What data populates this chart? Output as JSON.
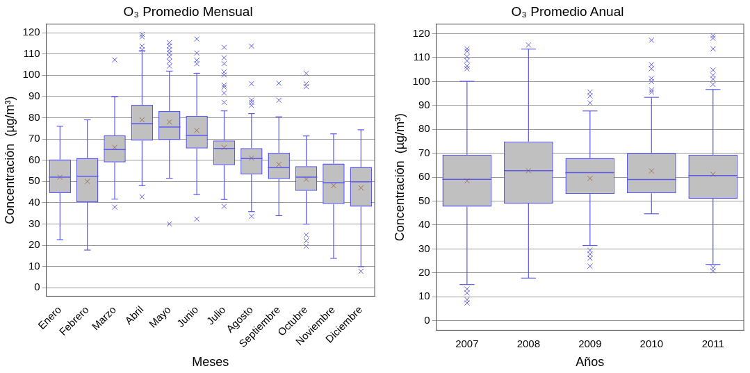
{
  "chart_data": [
    {
      "type": "box",
      "title": "O₃ Promedio Mensual",
      "xlabel": "Meses",
      "ylabel": "Concentración  (µg/m³)",
      "categories": [
        "Enero",
        "Febrero",
        "Marzo",
        "Abril",
        "Mayo",
        "Junio",
        "Julio",
        "Agosto",
        "Septiembre",
        "Octubre",
        "Noviembre",
        "Diciembre"
      ],
      "color": "#5a5aee",
      "ylim": [
        -4,
        124
      ],
      "yticks": [
        0,
        10,
        20,
        30,
        40,
        50,
        60,
        70,
        80,
        90,
        100,
        110,
        120
      ],
      "grid": "y",
      "marker": "cross",
      "legend": false,
      "boxes": [
        {
          "low": 22.6,
          "q1": 44.5,
          "median": 52,
          "q3": 60.4,
          "high": 76,
          "mean": 52
        },
        {
          "low": 17.7,
          "q1": 40.3,
          "median": 52.4,
          "q3": 61,
          "high": 79,
          "mean": 50
        },
        {
          "low": 41.7,
          "q1": 59,
          "median": 65,
          "q3": 71.6,
          "high": 89.8,
          "mean": 66,
          "outliers": [
            107.2,
            37.9
          ]
        },
        {
          "low": 48,
          "q1": 69.2,
          "median": 77.2,
          "q3": 86,
          "high": 111.5,
          "mean": 79,
          "outliers": [
            119.2,
            118.1,
            113.7,
            112,
            42.8
          ]
        },
        {
          "low": 51.5,
          "q1": 69.5,
          "median": 75.6,
          "q3": 83.1,
          "high": 101.9,
          "mean": 78,
          "outliers": [
            115.3,
            113.7,
            112,
            110.4,
            108.7,
            106.5,
            104.3,
            30
          ]
        },
        {
          "low": 43.8,
          "q1": 65.5,
          "median": 71.7,
          "q3": 80.9,
          "high": 100.9,
          "mean": 74,
          "outliers": [
            117,
            110.4,
            107,
            105.4,
            32.3
          ]
        },
        {
          "low": 41.5,
          "q1": 57.7,
          "median": 65.5,
          "q3": 69.3,
          "high": 83.2,
          "mean": 66,
          "outliers": [
            113.1,
            108.2,
            105.4,
            101.5,
            100.1,
            95.3,
            94.4,
            91.6,
            87.2,
            38.3
          ]
        },
        {
          "low": 35.8,
          "q1": 53.3,
          "median": 60.8,
          "q3": 65.7,
          "high": 81.9,
          "mean": 61,
          "outliers": [
            113.7,
            96,
            88.3,
            87.2,
            85.8,
            33.6
          ]
        },
        {
          "low": 33.9,
          "q1": 51.1,
          "median": 56.5,
          "q3": 63.5,
          "high": 80.4,
          "mean": 58,
          "outliers": [
            96.2,
            88.2
          ]
        },
        {
          "low": 29.9,
          "q1": 45.6,
          "median": 52,
          "q3": 57.2,
          "high": 71.4,
          "mean": 51,
          "outliers": [
            100.8,
            96,
            94.6,
            24.8,
            22.1,
            19.5
          ]
        },
        {
          "low": 13.8,
          "q1": 39.4,
          "median": 49.4,
          "q3": 58.4,
          "high": 72.4,
          "mean": 48
        },
        {
          "low": 9.9,
          "q1": 38.1,
          "median": 49.8,
          "q3": 56.8,
          "high": 74.3,
          "mean": 47,
          "outliers": [
            7.7
          ]
        }
      ]
    },
    {
      "type": "box",
      "title": "O₃ Promedio Anual",
      "xlabel": "Años",
      "ylabel": "Concentración  (µg/m³)",
      "categories": [
        "2007",
        "2008",
        "2009",
        "2010",
        "2011"
      ],
      "color": "#5a5aee",
      "ylim": [
        -4,
        124
      ],
      "yticks": [
        0,
        10,
        20,
        30,
        40,
        50,
        60,
        70,
        80,
        90,
        100,
        110,
        120
      ],
      "grid": "y",
      "marker": "cross",
      "legend": false,
      "boxes": [
        {
          "low": 15.1,
          "q1": 47.7,
          "median": 59.1,
          "q3": 69.4,
          "high": 100.1,
          "mean": 58.5,
          "outliers": [
            113.7,
            112.6,
            110.4,
            108.7,
            106.5,
            105.4,
            13.2,
            11.6,
            8.8,
            7.4
          ]
        },
        {
          "low": 17.8,
          "q1": 49,
          "median": 62.7,
          "q3": 74.9,
          "high": 113.6,
          "mean": 62.7,
          "outliers": [
            115.3
          ]
        },
        {
          "low": 31.4,
          "q1": 53,
          "median": 61.9,
          "q3": 68,
          "high": 87.7,
          "mean": 59.5,
          "outliers": [
            95.6,
            94,
            91.1,
            29.4,
            27.8,
            26.1,
            22.8
          ]
        },
        {
          "low": 44.7,
          "q1": 53.3,
          "median": 59,
          "q3": 70,
          "high": 93.4,
          "mean": 62.6,
          "outliers": [
            117.3,
            107.1,
            105.4,
            101.3,
            100,
            96.5,
            95.6
          ]
        },
        {
          "low": 23.5,
          "q1": 51,
          "median": 60.7,
          "q3": 69.4,
          "high": 96.7,
          "mean": 61.2,
          "outliers": [
            119.2,
            118.1,
            113.7,
            104.8,
            102.6,
            101,
            98.8,
            22.2,
            20.8
          ]
        }
      ]
    }
  ]
}
